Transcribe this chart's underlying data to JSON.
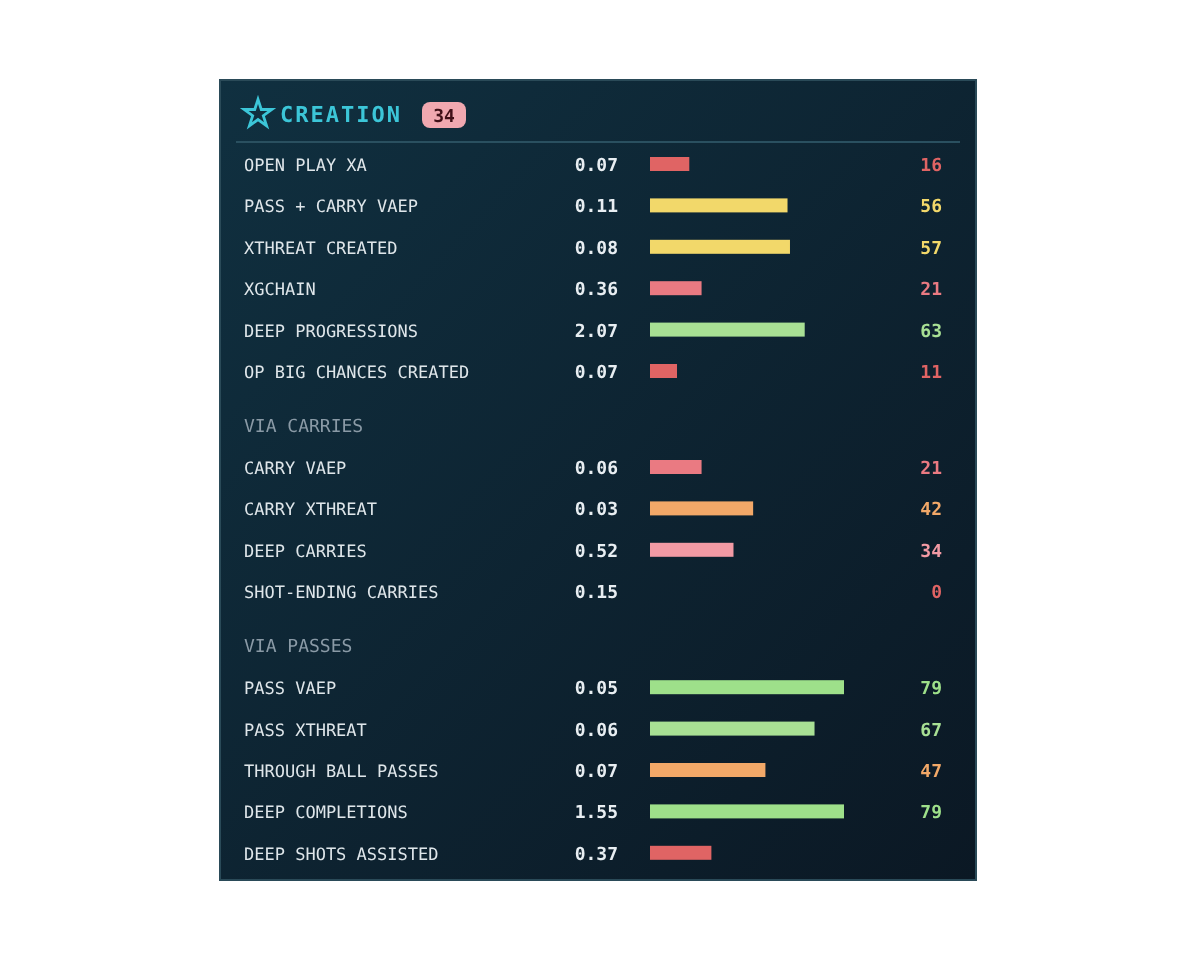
{
  "chart_data": {
    "type": "bar",
    "orientation": "horizontal",
    "title": "CREATION",
    "subtitle": "34",
    "tick_labels": "y",
    "categories": [
      "OPEN PLAY XA",
      "PASS + CARRY VAEP",
      "XTHREAT CREATED",
      "XGCHAIN",
      "DEEP PROGRESSIONS",
      "OP BIG CHANCES CREATED",
      "VIA CARRIES",
      "CARRY VAEP",
      "CARRY XTHREAT",
      "DEEP CARRIES",
      "SHOT-ENDING CARRIES",
      "VIA PASSES",
      "PASS VAEP",
      "PASS XTHREAT",
      "THROUGH BALL PASSES",
      "DEEP COMPLETIONS",
      "DEEP SHOTS ASSISTED"
    ],
    "values": [
      16,
      56,
      57,
      21,
      63,
      11,
      null,
      21,
      42,
      34,
      0,
      null,
      79,
      67,
      47,
      79,
      25
    ],
    "value_labels": [
      "16",
      "56",
      "57",
      "21",
      "63",
      "11",
      null,
      "21",
      "42",
      "34",
      "0",
      null,
      "79",
      "67",
      "47",
      "79",
      null
    ],
    "colors": [
      "#e06464",
      "#f2d86a",
      "#f2d86a",
      "#ea7a82",
      "#a8e094",
      "#e06464",
      null,
      "#ea7a82",
      "#f2a868",
      "#f29aa4",
      "#e06464",
      null,
      "#9ee08a",
      "#a8e094",
      "#f2a868",
      "#9ee08a",
      "#e06464"
    ],
    "annotations": [
      "0.07",
      "0.11",
      "0.08",
      "0.36",
      "2.07",
      "0.07",
      "0.06",
      "0.03",
      "0.52",
      "0.15",
      "0.05",
      "0.06",
      "0.07",
      "1.55",
      "0.37"
    ]
  }
}
